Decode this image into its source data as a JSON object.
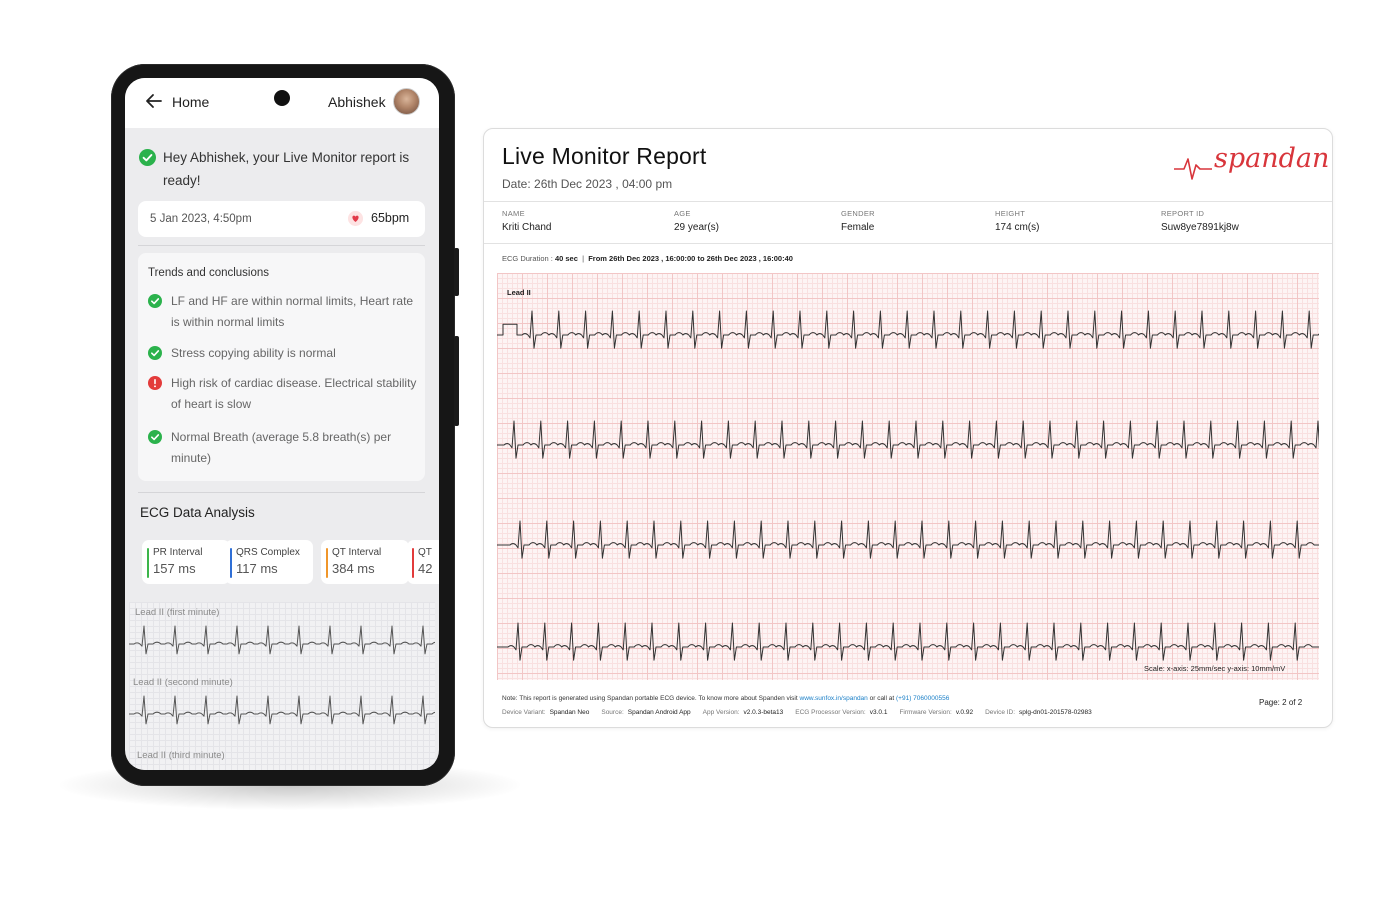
{
  "phone": {
    "appbar": {
      "back_label": "Home",
      "user_name": "Abhishek"
    },
    "ready_message": "Hey Abhishek, your Live Monitor report is ready!",
    "record": {
      "date": "5 Jan 2023, 4:50pm",
      "bpm": "65bpm"
    },
    "trends": {
      "title": "Trends and conclusions",
      "items": [
        {
          "text": "LF and HF are within normal limits, Heart rate is within normal limits",
          "status": "ok"
        },
        {
          "text": "Stress copying ability is normal",
          "status": "ok"
        },
        {
          "text": "High risk of cardiac disease. Electrical stability of heart is slow",
          "status": "alert"
        },
        {
          "text": "Normal Breath (average 5.8 breath(s) per minute)",
          "status": "ok"
        }
      ]
    },
    "ecg_analysis": {
      "title": "ECG Data Analysis",
      "metrics": [
        {
          "label": "PR Interval",
          "value": "157 ms",
          "color": "#3cb54a"
        },
        {
          "label": "QRS Complex",
          "value": "117 ms",
          "color": "#2f6fd6"
        },
        {
          "label": "QT Interval",
          "value": "384 ms",
          "color": "#f0962a"
        },
        {
          "label": "QT",
          "value": "42",
          "color": "#e23b3b"
        }
      ]
    },
    "leads": [
      "Lead II (first minute)",
      "Lead II (second minute)",
      "Lead II (third minute)"
    ]
  },
  "report": {
    "title": "Live Monitor Report",
    "date": "Date: 26th Dec 2023 , 04:00 pm",
    "brand": "spandan",
    "patient": [
      {
        "label": "NAME",
        "value": "Kriti Chand"
      },
      {
        "label": "AGE",
        "value": "29 year(s)"
      },
      {
        "label": "GENDER",
        "value": "Female"
      },
      {
        "label": "HEIGHT",
        "value": "174 cm(s)"
      },
      {
        "label": "REPORT ID",
        "value": "Suw8ye7891kj8w"
      }
    ],
    "duration": {
      "prefix": "ECG Duration :",
      "value": "40 sec",
      "separator": "|",
      "from_label": "From",
      "from": "26th Dec 2023 , 16:00:00",
      "to_label": "to",
      "to": "26th Dec 2023 , 16:00:40"
    },
    "lead_label": "Lead II",
    "scale": "Scale: x-axis: 25mm/sec  y-axis: 10mm/mV",
    "note": {
      "text": "Note: This report is generated using Spandan portable ECG device. To know more about Spanden visit",
      "link": "www.sunfox.in/spandan",
      "call_text": "or call at",
      "phone": "(+91) 7060000556"
    },
    "meta": [
      {
        "label": "Device Variant:",
        "value": "Spandan Neo"
      },
      {
        "label": "Source:",
        "value": "Spandan Android App"
      },
      {
        "label": "App Version:",
        "value": "v2.0.3-beta13"
      },
      {
        "label": "ECG Processor Version:",
        "value": "v3.0.1"
      },
      {
        "label": "Firmware Version:",
        "value": "v.0.92"
      },
      {
        "label": "Device ID:",
        "value": "splg-dn01-201578-02983"
      }
    ],
    "page": {
      "label": "Page:",
      "current": "2",
      "of": "of",
      "total": "2"
    }
  },
  "colors": {
    "ok": "#2bb24c",
    "alert": "#e33b3b",
    "brand": "#d8353b",
    "trace": "#333333"
  }
}
